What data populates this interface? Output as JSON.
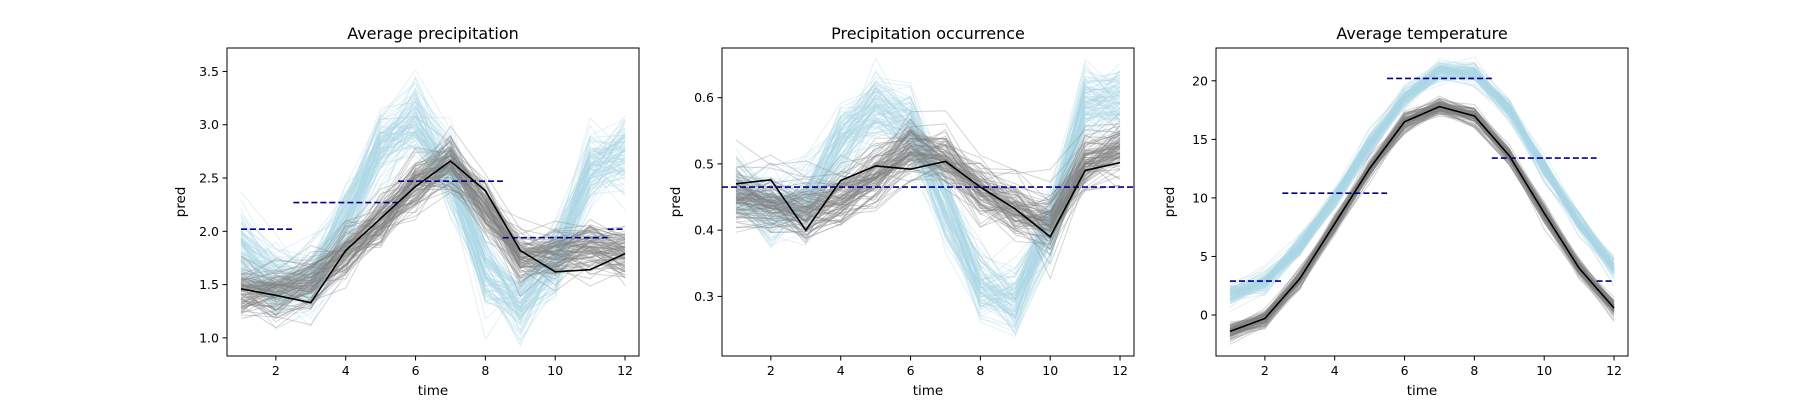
{
  "colors": {
    "ensemble_a": "#add8e6",
    "ensemble_b": "#808080",
    "observed": "#000000",
    "reference": "#00008b"
  },
  "chart_data": [
    {
      "type": "line",
      "title": "Average precipitation",
      "xlabel": "time",
      "ylabel": "pred",
      "xlim": [
        0.6,
        12.4
      ],
      "ylim": [
        0.83,
        3.72
      ],
      "xticks": [
        2,
        4,
        6,
        8,
        10,
        12
      ],
      "yticks": [
        1.0,
        1.5,
        2.0,
        2.5,
        3.0,
        3.5
      ],
      "ytick_decimals": 1,
      "x": [
        1,
        2,
        3,
        4,
        5,
        6,
        7,
        8,
        9,
        10,
        11,
        12
      ],
      "grid": false,
      "ensembles": [
        {
          "color": "#add8e6",
          "count": 100,
          "mean": [
            1.85,
            1.48,
            1.55,
            2.1,
            2.8,
            3.05,
            2.55,
            1.6,
            1.3,
            1.75,
            2.6,
            2.75
          ],
          "spread": 0.18
        },
        {
          "color": "#808080",
          "count": 100,
          "mean": [
            1.45,
            1.42,
            1.5,
            1.8,
            2.1,
            2.45,
            2.65,
            2.25,
            1.75,
            1.8,
            1.85,
            1.8
          ],
          "spread": 0.13
        }
      ],
      "observed": {
        "color": "#000000",
        "values": [
          1.46,
          1.4,
          1.33,
          1.82,
          2.12,
          2.42,
          2.66,
          2.38,
          1.82,
          1.62,
          1.64,
          1.79
        ]
      },
      "reference_segments": [
        {
          "x": [
            1,
            2.5
          ],
          "y": 2.02
        },
        {
          "x": [
            2.5,
            5.5
          ],
          "y": 2.27
        },
        {
          "x": [
            5.5,
            8.5
          ],
          "y": 2.47
        },
        {
          "x": [
            8.5,
            11.5
          ],
          "y": 1.94
        },
        {
          "x": [
            11.5,
            12
          ],
          "y": 2.02
        }
      ]
    },
    {
      "type": "line",
      "title": "Precipitation occurrence",
      "xlabel": "time",
      "ylabel": "pred",
      "xlim": [
        0.6,
        12.4
      ],
      "ylim": [
        0.21,
        0.675
      ],
      "xticks": [
        2,
        4,
        6,
        8,
        10,
        12
      ],
      "yticks": [
        0.3,
        0.4,
        0.5,
        0.6
      ],
      "ytick_decimals": 1,
      "x": [
        1,
        2,
        3,
        4,
        5,
        6,
        7,
        8,
        9,
        10,
        11,
        12
      ],
      "grid": false,
      "ensembles": [
        {
          "color": "#add8e6",
          "count": 100,
          "mean": [
            0.46,
            0.43,
            0.44,
            0.53,
            0.59,
            0.56,
            0.44,
            0.32,
            0.29,
            0.41,
            0.59,
            0.6
          ],
          "spread": 0.028
        },
        {
          "color": "#808080",
          "count": 100,
          "mean": [
            0.45,
            0.44,
            0.43,
            0.45,
            0.48,
            0.52,
            0.51,
            0.46,
            0.43,
            0.41,
            0.5,
            0.52
          ],
          "spread": 0.022
        }
      ],
      "observed": {
        "color": "#000000",
        "values": [
          0.47,
          0.476,
          0.4,
          0.475,
          0.497,
          0.492,
          0.504,
          0.465,
          0.432,
          0.39,
          0.49,
          0.502
        ]
      },
      "reference_segments": [
        {
          "x": [
            0.6,
            12.4
          ],
          "y": 0.465
        }
      ]
    },
    {
      "type": "line",
      "title": "Average temperature",
      "xlabel": "time",
      "ylabel": "pred",
      "xlim": [
        0.6,
        12.4
      ],
      "ylim": [
        -3.5,
        22.8
      ],
      "xticks": [
        2,
        4,
        6,
        8,
        10,
        12
      ],
      "yticks": [
        0,
        5,
        10,
        15,
        20
      ],
      "ytick_decimals": 0,
      "x": [
        1,
        2,
        3,
        4,
        5,
        6,
        7,
        8,
        9,
        10,
        11,
        12
      ],
      "grid": false,
      "ensembles": [
        {
          "color": "#add8e6",
          "count": 100,
          "mean": [
            1.8,
            2.8,
            5.8,
            10.0,
            14.5,
            18.5,
            20.8,
            20.6,
            17.5,
            12.5,
            7.8,
            4.0
          ],
          "spread": 0.45
        },
        {
          "color": "#808080",
          "count": 100,
          "mean": [
            -1.4,
            -0.3,
            3.1,
            7.8,
            12.5,
            16.5,
            17.8,
            17.0,
            13.6,
            8.7,
            4.0,
            0.6
          ],
          "spread": 0.35
        }
      ],
      "observed": {
        "color": "#000000",
        "values": [
          -1.4,
          -0.3,
          3.1,
          7.8,
          12.5,
          16.5,
          17.8,
          17.0,
          13.6,
          8.7,
          4.0,
          0.6
        ]
      },
      "reference_segments": [
        {
          "x": [
            1,
            2.5
          ],
          "y": 2.9
        },
        {
          "x": [
            2.5,
            5.5
          ],
          "y": 10.4
        },
        {
          "x": [
            5.5,
            8.5
          ],
          "y": 20.2
        },
        {
          "x": [
            8.5,
            11.5
          ],
          "y": 13.4
        },
        {
          "x": [
            11.5,
            12
          ],
          "y": 2.9
        }
      ]
    }
  ]
}
